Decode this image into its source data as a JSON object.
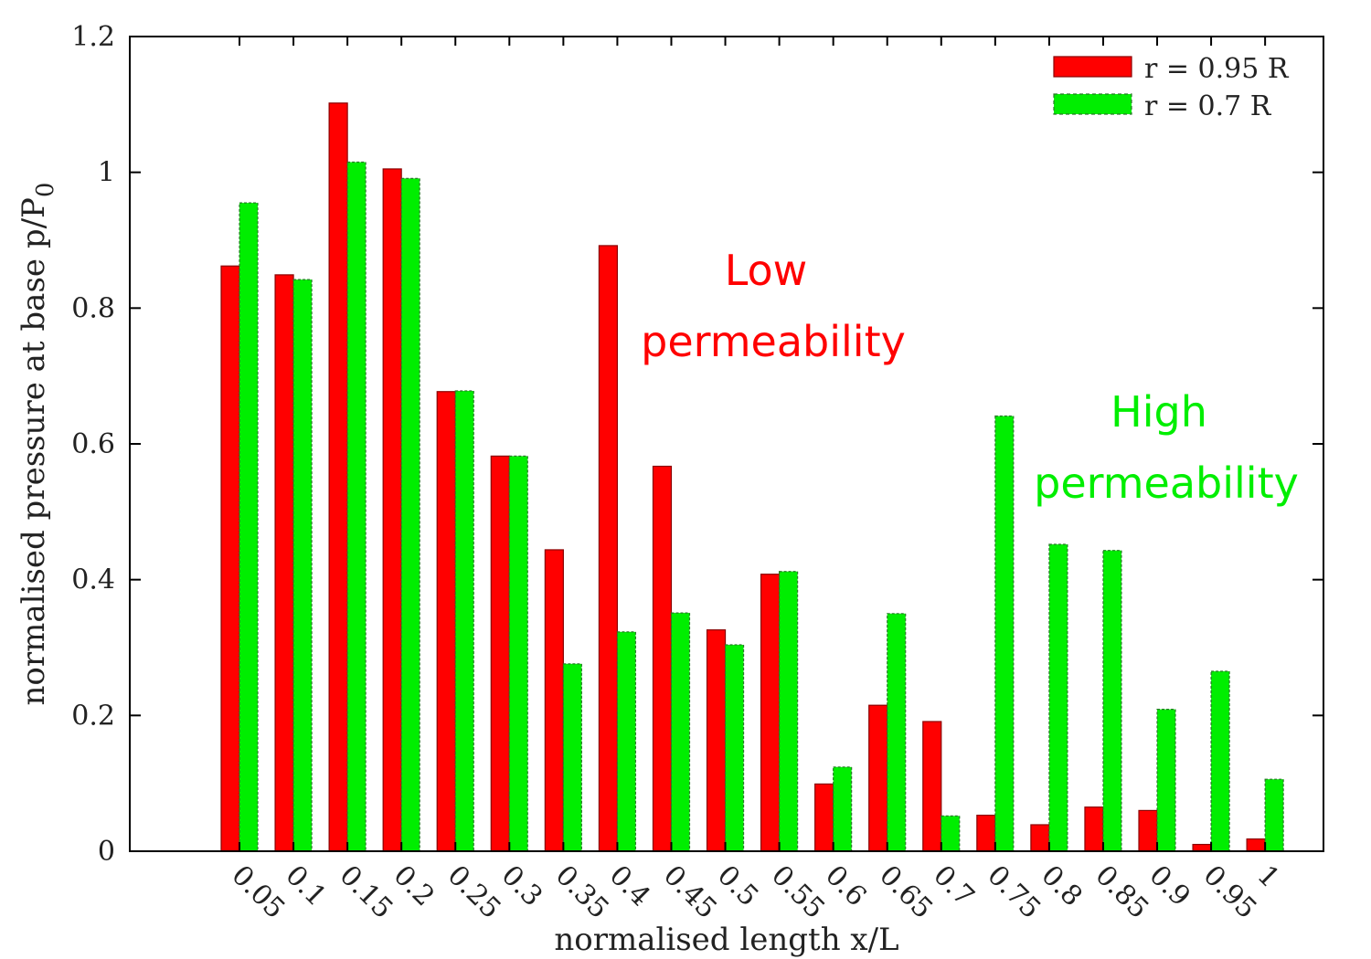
{
  "chart_data": {
    "type": "bar",
    "xlabel": "normalised length x/L",
    "ylabel": "normalised pressure at base p/P",
    "ylabel_subscript": "0",
    "ylim": [
      0,
      1.2
    ],
    "yticks": [
      "0",
      "0.2",
      "0.4",
      "0.6",
      "0.8",
      "1",
      "1.2"
    ],
    "ytick_values": [
      0,
      0.2,
      0.4,
      0.6,
      0.8,
      1.0,
      1.2
    ],
    "categories": [
      "0.05",
      "0.1",
      "0.15",
      "0.2",
      "0.25",
      "0.3",
      "0.35",
      "0.4",
      "0.45",
      "0.5",
      "0.55",
      "0.6",
      "0.65",
      "0.7",
      "0.75",
      "0.8",
      "0.85",
      "0.9",
      "0.95",
      "1"
    ],
    "series": [
      {
        "name": "r = 0.95 R",
        "color": "#ff0000",
        "values": [
          0.862,
          0.849,
          1.102,
          1.005,
          0.677,
          0.582,
          0.444,
          0.892,
          0.567,
          0.326,
          0.408,
          0.099,
          0.215,
          0.191,
          0.053,
          0.039,
          0.065,
          0.06,
          0.01,
          0.018
        ]
      },
      {
        "name": "r = 0.7 R",
        "color": "#00ee00",
        "values": [
          0.955,
          0.842,
          1.015,
          0.991,
          0.678,
          0.582,
          0.276,
          0.323,
          0.351,
          0.304,
          0.412,
          0.124,
          0.35,
          0.052,
          0.641,
          0.452,
          0.443,
          0.209,
          0.265,
          0.106
        ]
      }
    ],
    "legend_position": "top-right",
    "grid": false,
    "annotations": [
      {
        "lines": [
          "Low",
          "permeability"
        ],
        "color": "#ff0000"
      },
      {
        "lines": [
          "High",
          "permeability"
        ],
        "color": "#00ee00"
      }
    ]
  }
}
